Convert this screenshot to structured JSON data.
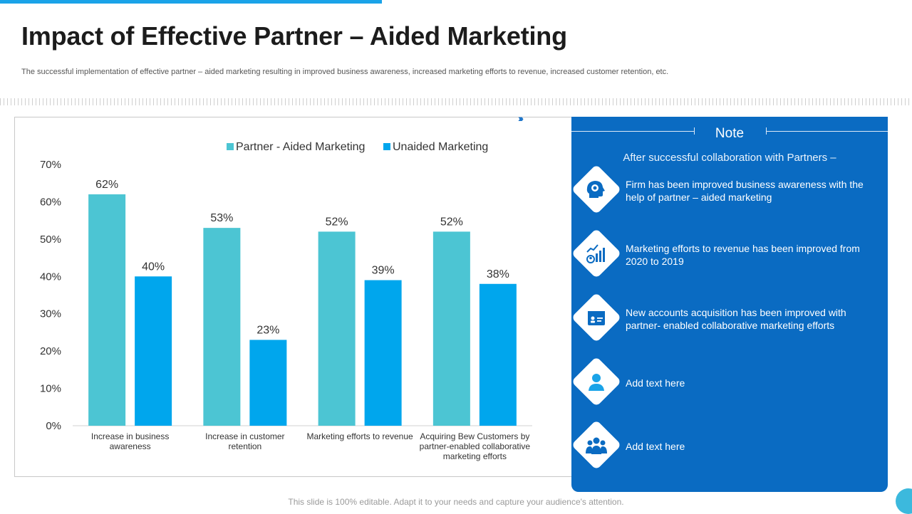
{
  "title": "Impact of Effective Partner – Aided Marketing",
  "subtitle": "The successful implementation of effective partner – aided marketing resulting in improved business awareness, increased marketing efforts to revenue,  increased customer retention, etc.",
  "footer": "This slide is 100% editable. Adapt it to your needs and capture your audience's attention.",
  "colors": {
    "partner": "#4cc5d3",
    "unaided": "#00a6ed",
    "panel": "#0a6bc2",
    "accent": "#1aa3e8"
  },
  "chart_data": {
    "type": "bar",
    "categories": [
      [
        "Increase in business",
        "awareness"
      ],
      [
        "Increase in customer",
        "retention"
      ],
      [
        "Marketing efforts to revenue"
      ],
      [
        "Acquiring Bew Customers by",
        "partner-enabled collaborative",
        "marketing efforts"
      ]
    ],
    "series": [
      {
        "name": "Partner - Aided Marketing",
        "values": [
          62,
          53,
          52,
          52
        ],
        "labels": [
          "62%",
          "53%",
          "52%",
          "52%"
        ]
      },
      {
        "name": "Unaided Marketing",
        "values": [
          40,
          23,
          39,
          38
        ],
        "labels": [
          "40%",
          "23%",
          "39%",
          "38%"
        ]
      }
    ],
    "ylim": [
      0,
      70
    ],
    "yticks": [
      "0%",
      "10%",
      "20%",
      "30%",
      "40%",
      "50%",
      "60%",
      "70%"
    ],
    "legend": "top"
  },
  "note": {
    "title": "Note",
    "intro": "After successful collaboration with Partners –",
    "items": [
      {
        "icon": "head-idea-icon",
        "text": "Firm has been improved business awareness with the help of partner – aided marketing"
      },
      {
        "icon": "growth-chart-icon",
        "text": "Marketing efforts to revenue has been improved from 2020 to 2019"
      },
      {
        "icon": "account-card-icon",
        "text": "New accounts acquisition has been improved with partner- enabled collaborative marketing efforts"
      },
      {
        "icon": "user-icon",
        "text": "Add text here"
      },
      {
        "icon": "team-icon",
        "text": "Add text here"
      }
    ]
  }
}
